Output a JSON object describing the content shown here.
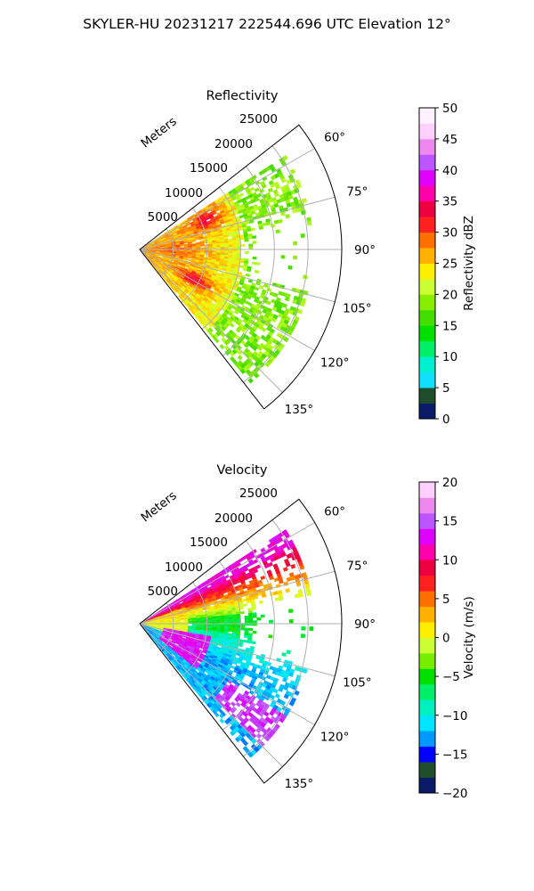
{
  "figure": {
    "title": "SKYLER-HU  20231217  222544.696 UTC Elevation 12°"
  },
  "chart_data": [
    {
      "type": "heatmap",
      "projection": "polar-sector",
      "title": "Reflectivity",
      "range_label": "Meters",
      "angle_range_deg": [
        52,
        142
      ],
      "range_max": 30000,
      "range_ticks": [
        5000,
        10000,
        15000,
        20000,
        25000
      ],
      "range_tick_labels": [
        "5000",
        "10000",
        "15000",
        "20000",
        "25000"
      ],
      "angle_ticks": [
        60,
        75,
        90,
        105,
        120,
        135
      ],
      "angle_tick_labels": [
        "60°",
        "75°",
        "90°",
        "105°",
        "120°",
        "135°"
      ],
      "grid": true,
      "colorbar": {
        "label": "Reflectivity dBZ",
        "min": 0,
        "max": 50,
        "ticks": [
          0,
          5,
          10,
          15,
          20,
          25,
          30,
          35,
          40,
          45,
          50
        ],
        "tick_labels": [
          "0",
          "5",
          "10",
          "15",
          "20",
          "25",
          "30",
          "35",
          "40",
          "45",
          "50"
        ],
        "colors": [
          "#0a1a66",
          "#1f4d2a",
          "#12e0ff",
          "#00f0d0",
          "#00f06a",
          "#00e000",
          "#44dd00",
          "#88ee00",
          "#ccff33",
          "#ffee00",
          "#ffb000",
          "#ff7000",
          "#ff2020",
          "#ee0040",
          "#ff00aa",
          "#dd00ff",
          "#bb55ff",
          "#ee88ee",
          "#ffd0ff",
          "#fff0ff"
        ]
      },
      "field_summary": "Returns mostly 18-30 dBZ across 58-138° out to ~25000 m; strongest (30-38 dBZ) in bands near 8000-12000 m at ~65° and ~118°; sparse 15-22 dBZ returns beyond 15000 m."
    },
    {
      "type": "heatmap",
      "projection": "polar-sector",
      "title": "Velocity",
      "range_label": "Meters",
      "angle_range_deg": [
        52,
        142
      ],
      "range_max": 30000,
      "range_ticks": [
        5000,
        10000,
        15000,
        20000,
        25000
      ],
      "range_tick_labels": [
        "5000",
        "10000",
        "15000",
        "20000",
        "25000"
      ],
      "angle_ticks": [
        60,
        75,
        90,
        105,
        120,
        135
      ],
      "angle_tick_labels": [
        "60°",
        "75°",
        "90°",
        "105°",
        "120°",
        "135°"
      ],
      "grid": true,
      "colorbar": {
        "label": "Velocity (m/s)",
        "min": -20,
        "max": 20,
        "ticks": [
          -20,
          -15,
          -10,
          -5,
          0,
          5,
          10,
          15,
          20
        ],
        "tick_labels": [
          "−20",
          "−15",
          "−10",
          "−5",
          "0",
          "5",
          "10",
          "15",
          "20"
        ],
        "colors": [
          "#0a1a66",
          "#1f4d2a",
          "#0000ff",
          "#0099ff",
          "#00e5ff",
          "#00f0c0",
          "#00f06a",
          "#00e000",
          "#77ee00",
          "#ccff33",
          "#ffee00",
          "#ffb000",
          "#ff7000",
          "#ff2020",
          "#ee0040",
          "#ff00aa",
          "#dd00ff",
          "#bb55ff",
          "#ee88ee",
          "#ffd0ff"
        ]
      },
      "field_summary": "Positive velocities (5-15 m/s) on the 58-80° side, near-zero (yellow) close to the radar, negative (-8 to -14 m/s) around 95-125°, with receding (+12 to +16 m/s) pockets near 105-125° at short range and 125-130° at far range."
    }
  ]
}
